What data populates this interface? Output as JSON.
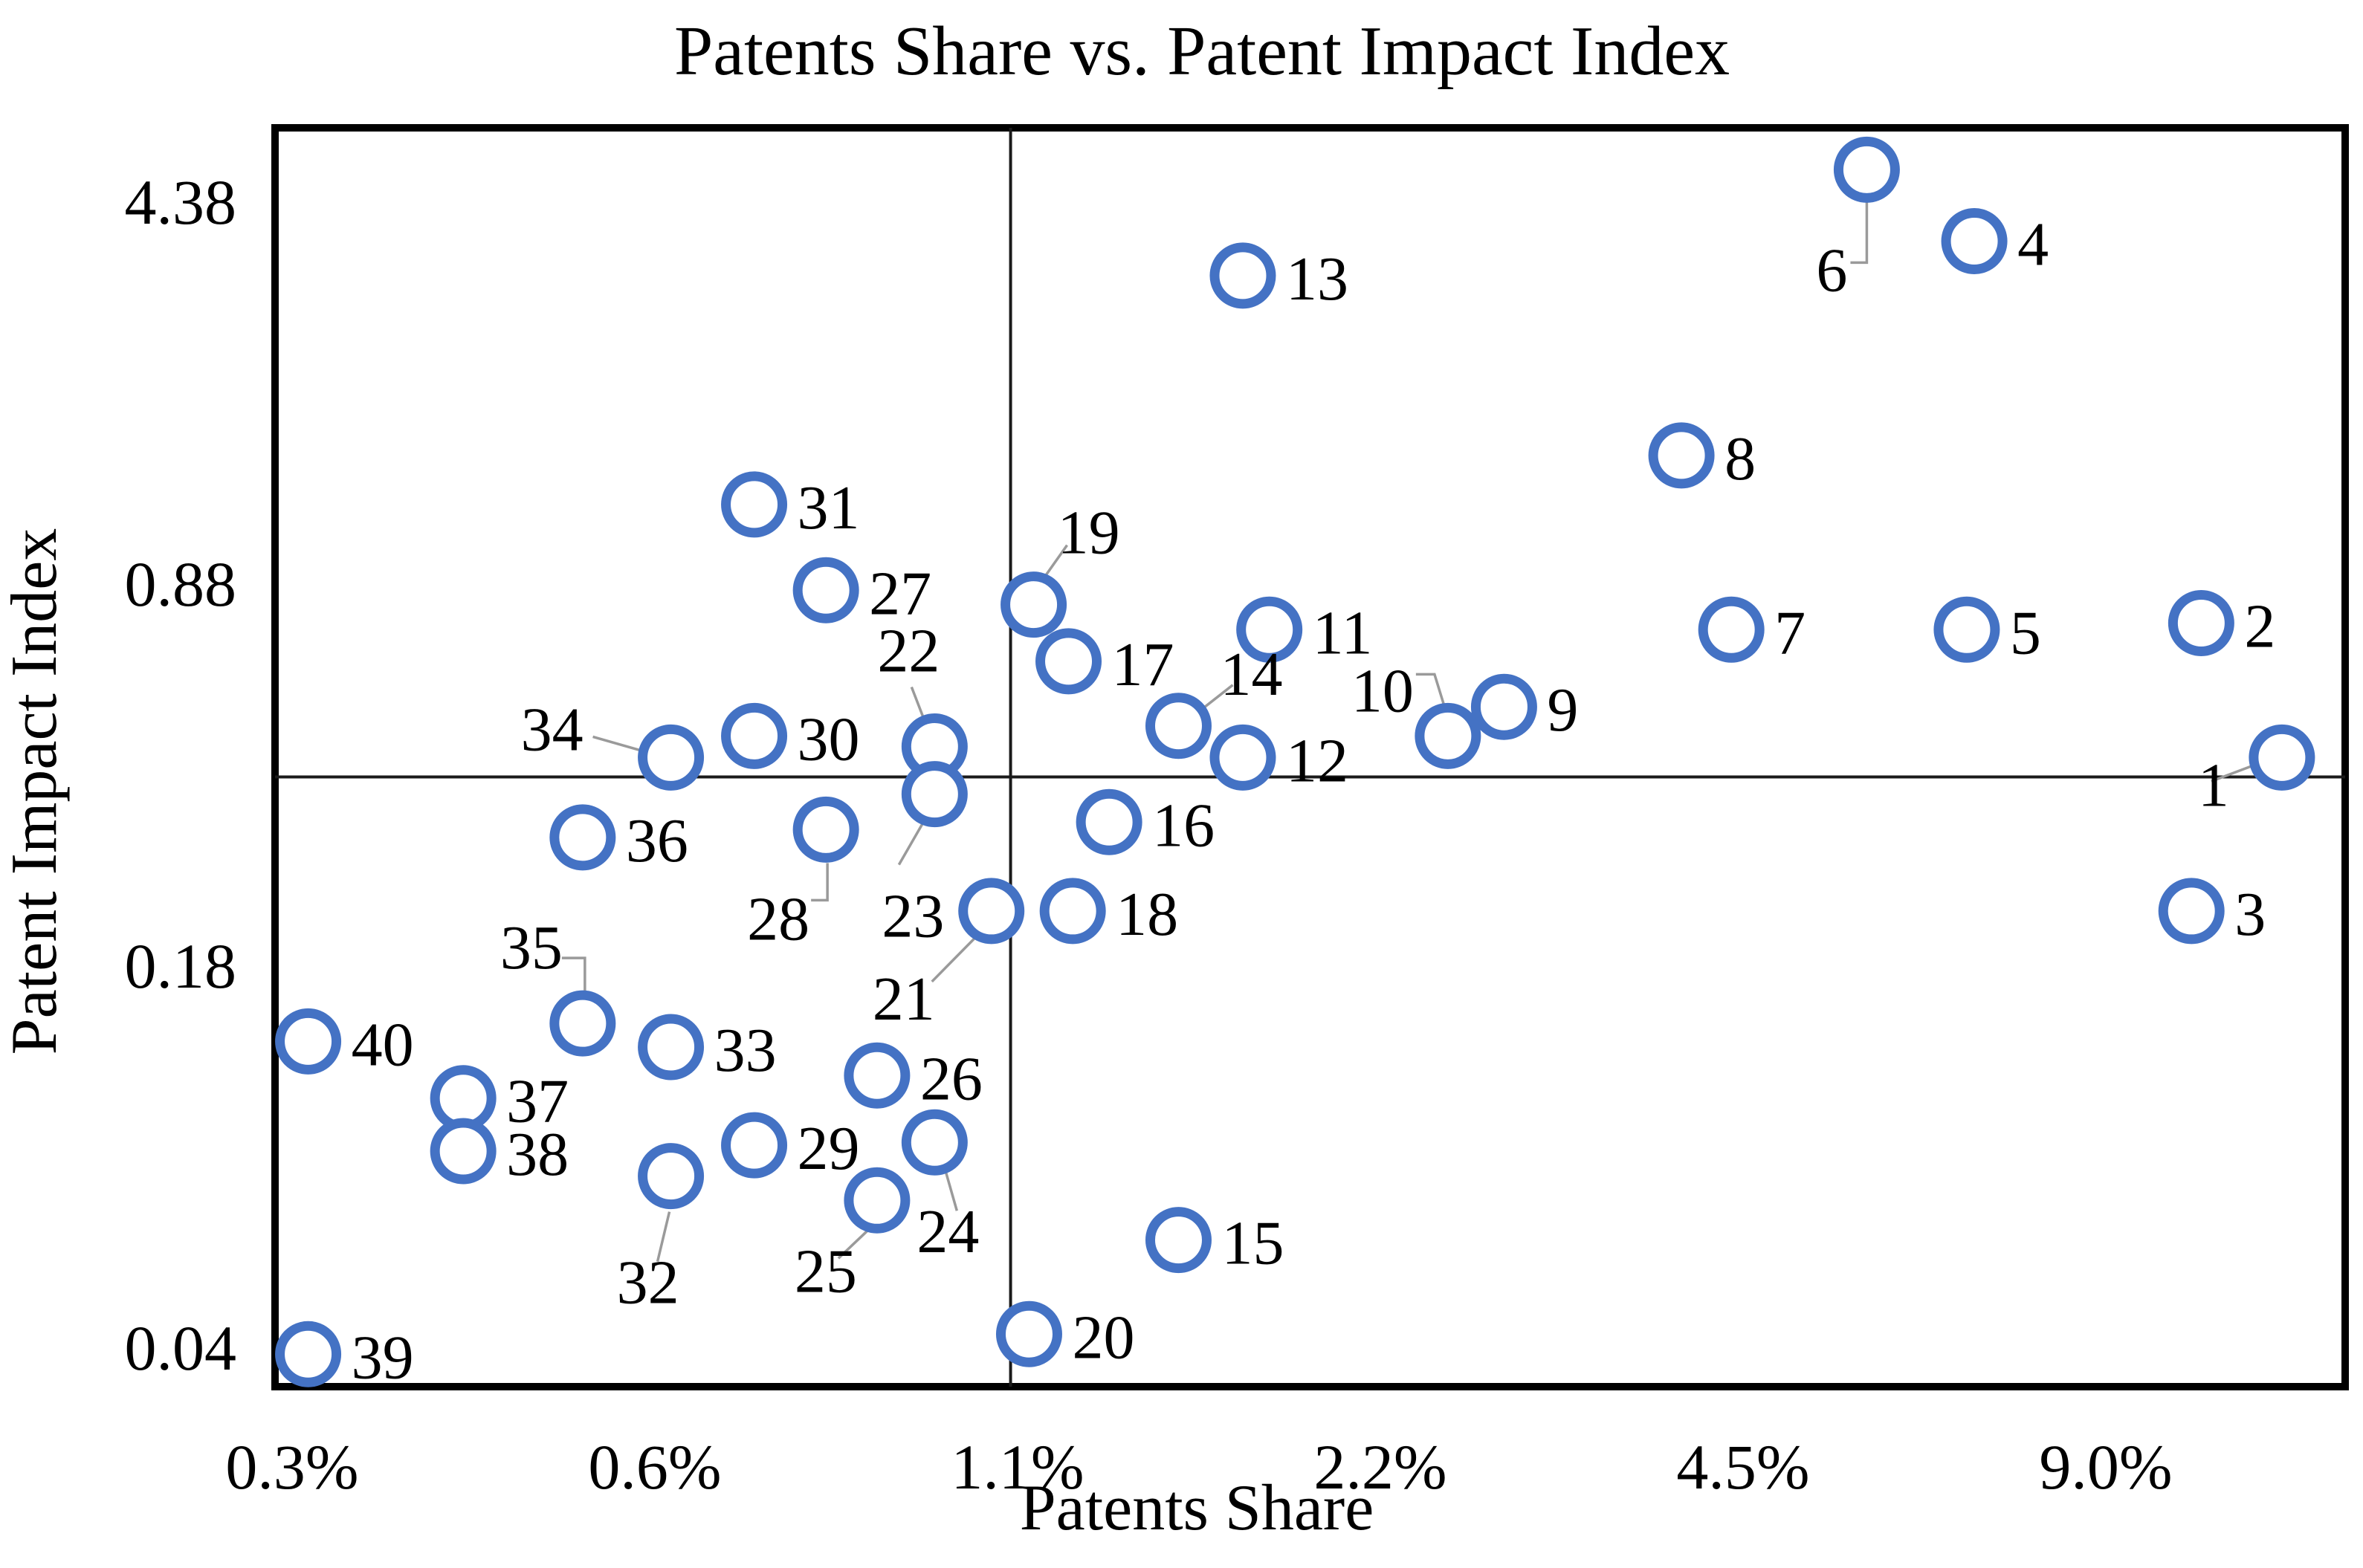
{
  "title": "Patents Share vs. Patent Impact Index",
  "chart_data": {
    "type": "scatter",
    "title": "Patents Share vs. Patent Impact Index",
    "xlabel": "Patents Share",
    "ylabel": "Patent Impact Index",
    "x_scale": "log-base-2",
    "y_scale": "log-base-5",
    "x_tick_labels": [
      "0.3%",
      "0.6%",
      "1.1%",
      "2.2%",
      "4.5%",
      "9.0%"
    ],
    "x_tick_values_pct": [
      0.28125,
      0.5625,
      1.125,
      2.25,
      4.5,
      9.0
    ],
    "y_tick_labels": [
      "0.04",
      "0.18",
      "0.88",
      "4.38"
    ],
    "y_tick_values": [
      0.035,
      0.175,
      0.875,
      4.375
    ],
    "x_range_pct": [
      0.267,
      14.2
    ],
    "y_range": [
      0.0295,
      6.0
    ],
    "grid": "off",
    "quadrant_lines": {
      "x_pct": 1.11,
      "y_value": 0.387
    },
    "marker_color": "#4472C4",
    "leader_line_color": "#9a9a9a",
    "frame_color": "#000000",
    "legend": "none",
    "points": [
      {
        "id": "1",
        "x_pct": 12.6,
        "y": 0.42
      },
      {
        "id": "2",
        "x_pct": 10.8,
        "y": 0.74
      },
      {
        "id": "3",
        "x_pct": 10.6,
        "y": 0.22
      },
      {
        "id": "4",
        "x_pct": 7.0,
        "y": 3.7
      },
      {
        "id": "5",
        "x_pct": 6.9,
        "y": 0.72
      },
      {
        "id": "6",
        "x_pct": 5.7,
        "y": 5.0
      },
      {
        "id": "7",
        "x_pct": 4.4,
        "y": 0.72
      },
      {
        "id": "8",
        "x_pct": 4.0,
        "y": 1.5
      },
      {
        "id": "9",
        "x_pct": 2.85,
        "y": 0.52
      },
      {
        "id": "10",
        "x_pct": 2.56,
        "y": 0.46
      },
      {
        "id": "11",
        "x_pct": 1.82,
        "y": 0.72
      },
      {
        "id": "12",
        "x_pct": 1.73,
        "y": 0.42
      },
      {
        "id": "13",
        "x_pct": 1.73,
        "y": 3.2
      },
      {
        "id": "14",
        "x_pct": 1.53,
        "y": 0.48
      },
      {
        "id": "15",
        "x_pct": 1.53,
        "y": 0.055
      },
      {
        "id": "16",
        "x_pct": 1.34,
        "y": 0.32
      },
      {
        "id": "17",
        "x_pct": 1.24,
        "y": 0.63
      },
      {
        "id": "18",
        "x_pct": 1.25,
        "y": 0.22
      },
      {
        "id": "19",
        "x_pct": 1.16,
        "y": 0.8
      },
      {
        "id": "20",
        "x_pct": 1.15,
        "y": 0.037
      },
      {
        "id": "21",
        "x_pct": 1.07,
        "y": 0.22
      },
      {
        "id": "22",
        "x_pct": 0.96,
        "y": 0.44
      },
      {
        "id": "23",
        "x_pct": 0.96,
        "y": 0.36
      },
      {
        "id": "24",
        "x_pct": 0.96,
        "y": 0.083
      },
      {
        "id": "25",
        "x_pct": 0.86,
        "y": 0.065
      },
      {
        "id": "26",
        "x_pct": 0.86,
        "y": 0.11
      },
      {
        "id": "27",
        "x_pct": 0.78,
        "y": 0.85
      },
      {
        "id": "28",
        "x_pct": 0.78,
        "y": 0.31
      },
      {
        "id": "29",
        "x_pct": 0.68,
        "y": 0.082
      },
      {
        "id": "30",
        "x_pct": 0.68,
        "y": 0.46
      },
      {
        "id": "31",
        "x_pct": 0.68,
        "y": 1.22
      },
      {
        "id": "32",
        "x_pct": 0.58,
        "y": 0.072
      },
      {
        "id": "33",
        "x_pct": 0.58,
        "y": 0.124
      },
      {
        "id": "34",
        "x_pct": 0.58,
        "y": 0.42
      },
      {
        "id": "35",
        "x_pct": 0.49,
        "y": 0.137
      },
      {
        "id": "36",
        "x_pct": 0.49,
        "y": 0.3
      },
      {
        "id": "37",
        "x_pct": 0.39,
        "y": 0.1
      },
      {
        "id": "38",
        "x_pct": 0.39,
        "y": 0.08
      },
      {
        "id": "39",
        "x_pct": 0.29,
        "y": 0.034
      },
      {
        "id": "40",
        "x_pct": 0.29,
        "y": 0.127
      }
    ]
  }
}
